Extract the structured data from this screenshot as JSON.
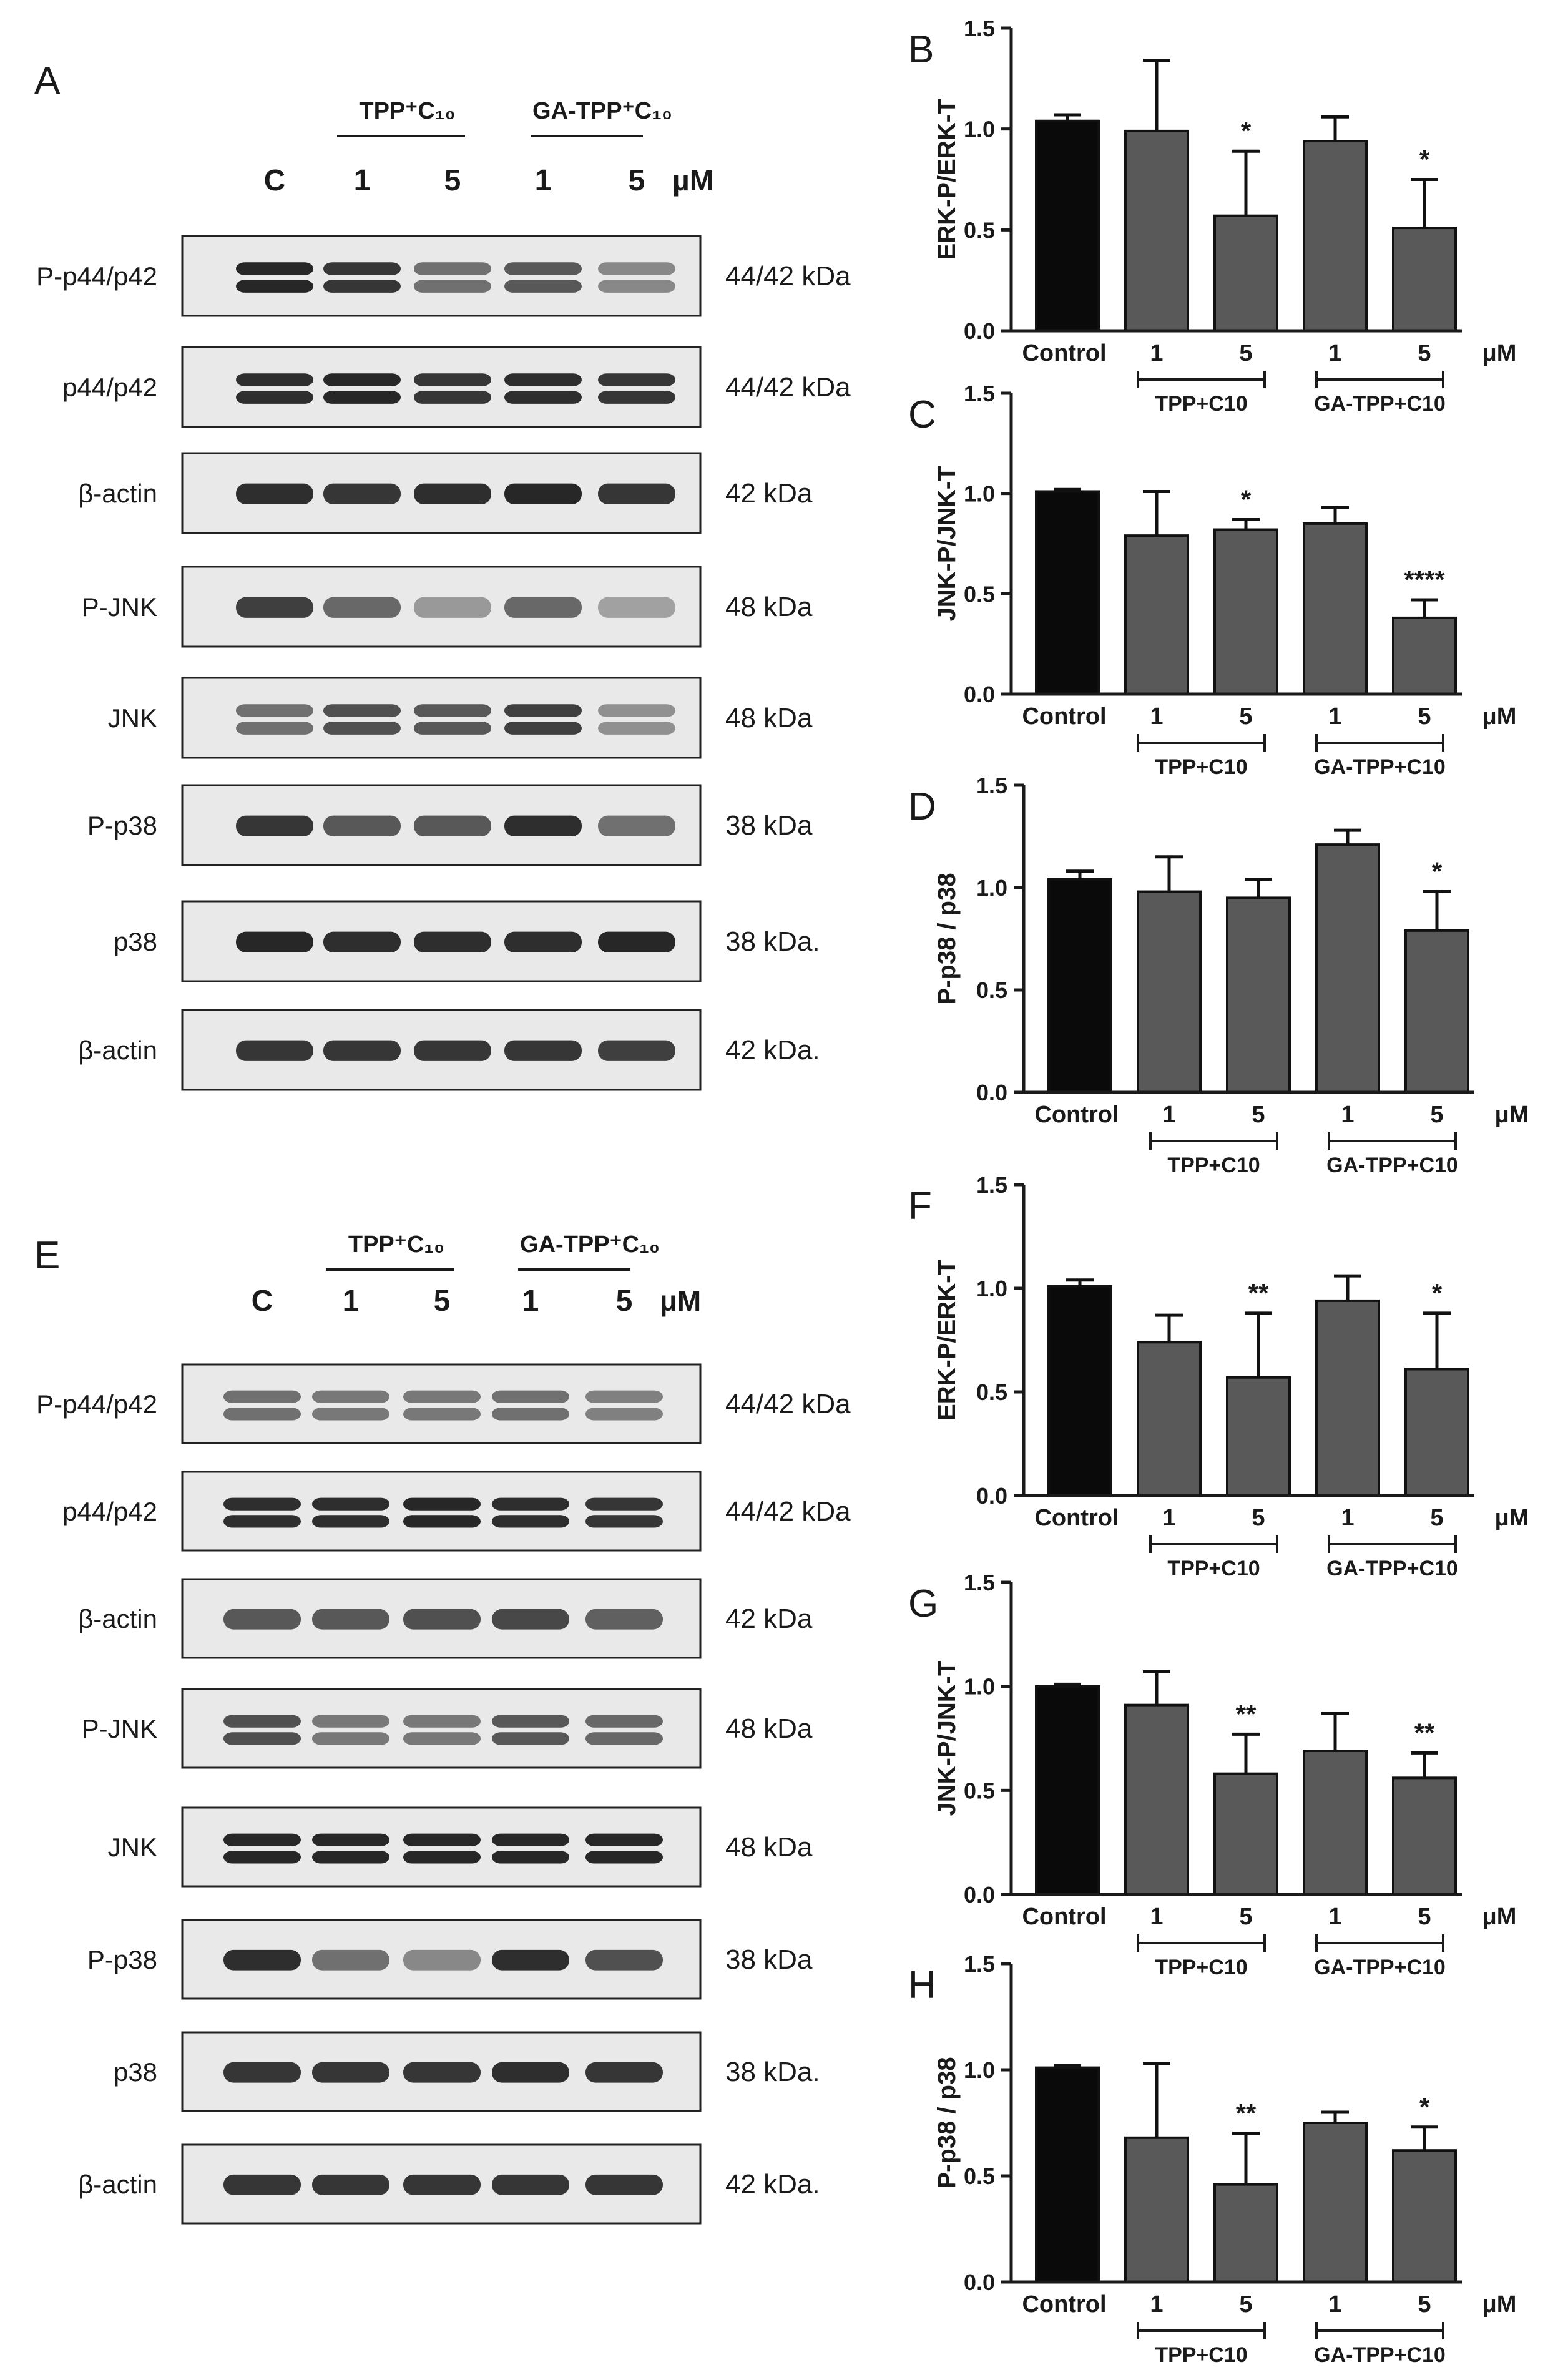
{
  "colors": {
    "control_bar": "#0a0a0a",
    "treated_bar": "#595959",
    "blot_bg": "#e9e9e9",
    "band": "#1c1c1c"
  },
  "blot_panels": [
    {
      "letter": "A",
      "group1": "TPP⁺C₁₀",
      "group2": "GA-TPP⁺C₁₀",
      "lanes": [
        "C",
        "1",
        "5",
        "1",
        "5"
      ],
      "unit": "μM",
      "rows": [
        {
          "name": "P-p44/p42",
          "mw": "44/42 kDa",
          "doublet": true,
          "intensity": [
            1.0,
            0.9,
            0.55,
            0.7,
            0.4
          ]
        },
        {
          "name": "p44/p42",
          "mw": "44/42 kDa",
          "doublet": true,
          "intensity": [
            0.95,
            1.0,
            0.9,
            0.95,
            0.9
          ]
        },
        {
          "name": "β-actin",
          "mw": "42 kDa",
          "doublet": false,
          "intensity": [
            0.95,
            0.9,
            0.95,
            1.0,
            0.9
          ]
        },
        {
          "name": "P-JNK",
          "mw": "48 kDa",
          "doublet": false,
          "intensity": [
            0.85,
            0.6,
            0.3,
            0.6,
            0.25
          ]
        },
        {
          "name": "JNK",
          "mw": "48 kDa",
          "doublet": true,
          "intensity": [
            0.55,
            0.75,
            0.7,
            0.85,
            0.35
          ]
        },
        {
          "name": "P-p38",
          "mw": "38 kDa",
          "doublet": false,
          "intensity": [
            0.9,
            0.7,
            0.7,
            0.95,
            0.55
          ]
        },
        {
          "name": "p38",
          "mw": "38 kDa.",
          "doublet": false,
          "intensity": [
            1.0,
            0.95,
            0.95,
            0.95,
            1.0
          ]
        },
        {
          "name": "β-actin",
          "mw": "42 kDa.",
          "doublet": false,
          "intensity": [
            0.9,
            0.9,
            0.9,
            0.9,
            0.85
          ]
        }
      ]
    },
    {
      "letter": "E",
      "group1": "TPP⁺C₁₀",
      "group2": "GA-TPP⁺C₁₀",
      "lanes": [
        "C",
        "1",
        "5",
        "1",
        "5"
      ],
      "unit": "μM",
      "rows": [
        {
          "name": "P-p44/p42",
          "mw": "44/42 kDa",
          "doublet": true,
          "intensity": [
            0.55,
            0.5,
            0.5,
            0.55,
            0.45
          ]
        },
        {
          "name": "p44/p42",
          "mw": "44/42 kDa",
          "doublet": true,
          "intensity": [
            0.95,
            0.95,
            1.0,
            0.95,
            0.9
          ]
        },
        {
          "name": "β-actin",
          "mw": "42 kDa",
          "doublet": false,
          "intensity": [
            0.7,
            0.7,
            0.75,
            0.8,
            0.65
          ]
        },
        {
          "name": "P-JNK",
          "mw": "48 kDa",
          "doublet": true,
          "intensity": [
            0.75,
            0.5,
            0.5,
            0.7,
            0.6
          ]
        },
        {
          "name": "JNK",
          "mw": "48 kDa",
          "doublet": true,
          "intensity": [
            1.0,
            1.0,
            1.0,
            1.0,
            1.0
          ]
        },
        {
          "name": "P-p38",
          "mw": "38 kDa",
          "doublet": false,
          "intensity": [
            0.95,
            0.55,
            0.4,
            0.95,
            0.75
          ]
        },
        {
          "name": "p38",
          "mw": "38 kDa.",
          "doublet": false,
          "intensity": [
            0.9,
            0.9,
            0.9,
            0.95,
            0.9
          ]
        },
        {
          "name": "β-actin",
          "mw": "42 kDa.",
          "doublet": false,
          "intensity": [
            0.9,
            0.9,
            0.9,
            0.9,
            0.9
          ]
        }
      ]
    }
  ],
  "chart_data": [
    {
      "letter": "B",
      "type": "bar",
      "ylabel": "ERK-P/ERK-T",
      "ylim": [
        0,
        1.5
      ],
      "yticks": [
        "0.0",
        "0.5",
        "1.0",
        "1.5"
      ],
      "categories": [
        "Control",
        "1",
        "5",
        "1",
        "5"
      ],
      "values": [
        1.04,
        0.99,
        0.57,
        0.94,
        0.51
      ],
      "errors": [
        0.03,
        0.35,
        0.32,
        0.12,
        0.24
      ],
      "significance": [
        "",
        "",
        "*",
        "",
        "*"
      ],
      "unit": "μM",
      "group_labels": [
        "TPP+C10",
        "GA-TPP+C10"
      ]
    },
    {
      "letter": "C",
      "type": "bar",
      "ylabel": "JNK-P/JNK-T",
      "ylim": [
        0,
        1.5
      ],
      "yticks": [
        "0.0",
        "0.5",
        "1.0",
        "1.5"
      ],
      "categories": [
        "Control",
        "1",
        "5",
        "1",
        "5"
      ],
      "values": [
        1.01,
        0.79,
        0.82,
        0.85,
        0.38
      ],
      "errors": [
        0.01,
        0.22,
        0.05,
        0.08,
        0.09
      ],
      "significance": [
        "",
        "",
        "*",
        "",
        "****"
      ],
      "unit": "μM",
      "group_labels": [
        "TPP+C10",
        "GA-TPP+C10"
      ]
    },
    {
      "letter": "D",
      "type": "bar",
      "ylabel": "P-p38 / p38",
      "ylim": [
        0,
        1.5
      ],
      "yticks": [
        "0.0",
        "0.5",
        "1.0",
        "1.5"
      ],
      "categories": [
        "Control",
        "1",
        "5",
        "1",
        "5"
      ],
      "values": [
        1.04,
        0.98,
        0.95,
        1.21,
        0.79
      ],
      "errors": [
        0.04,
        0.17,
        0.09,
        0.07,
        0.19
      ],
      "significance": [
        "",
        "",
        "",
        "",
        "*"
      ],
      "unit": "μM",
      "group_labels": [
        "TPP+C10",
        "GA-TPP+C10"
      ]
    },
    {
      "letter": "F",
      "type": "bar",
      "ylabel": "ERK-P/ERK-T",
      "ylim": [
        0,
        1.5
      ],
      "yticks": [
        "0.0",
        "0.5",
        "1.0",
        "1.5"
      ],
      "categories": [
        "Control",
        "1",
        "5",
        "1",
        "5"
      ],
      "values": [
        1.01,
        0.74,
        0.57,
        0.94,
        0.61
      ],
      "errors": [
        0.03,
        0.13,
        0.31,
        0.12,
        0.27
      ],
      "significance": [
        "",
        "",
        "**",
        "",
        "*"
      ],
      "unit": "μM",
      "group_labels": [
        "TPP+C10",
        "GA-TPP+C10"
      ]
    },
    {
      "letter": "G",
      "type": "bar",
      "ylabel": "JNK-P/JNK-T",
      "ylim": [
        0,
        1.5
      ],
      "yticks": [
        "0.0",
        "0.5",
        "1.0",
        "1.5"
      ],
      "categories": [
        "Control",
        "1",
        "5",
        "1",
        "5"
      ],
      "values": [
        1.0,
        0.91,
        0.58,
        0.69,
        0.56
      ],
      "errors": [
        0.01,
        0.16,
        0.19,
        0.18,
        0.12
      ],
      "significance": [
        "",
        "",
        "**",
        "",
        "**"
      ],
      "unit": "μM",
      "group_labels": [
        "TPP+C10",
        "GA-TPP+C10"
      ]
    },
    {
      "letter": "H",
      "type": "bar",
      "ylabel": "P-p38 / p38",
      "ylim": [
        0,
        1.5
      ],
      "yticks": [
        "0.0",
        "0.5",
        "1.0",
        "1.5"
      ],
      "categories": [
        "Control",
        "1",
        "5",
        "1",
        "5"
      ],
      "values": [
        1.01,
        0.68,
        0.46,
        0.75,
        0.62
      ],
      "errors": [
        0.01,
        0.35,
        0.24,
        0.05,
        0.11
      ],
      "significance": [
        "",
        "",
        "**",
        "",
        "*"
      ],
      "unit": "μM",
      "group_labels": [
        "TPP+C10",
        "GA-TPP+C10"
      ]
    }
  ]
}
